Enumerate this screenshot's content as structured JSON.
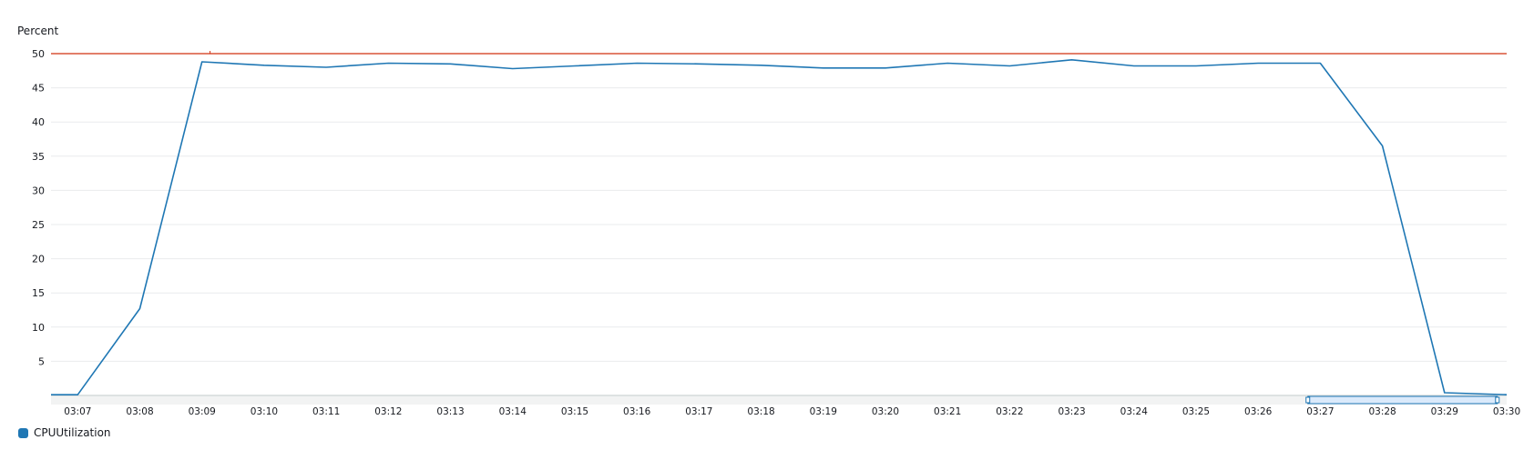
{
  "colors": {
    "series": "#1f77b4",
    "threshold": "#d13212",
    "grid": "#e9ebed",
    "axis": "#d5dbdb",
    "brush_fill": "#dbeafb",
    "brush_stroke": "#1f77b4"
  },
  "chart_data": {
    "type": "line",
    "ylabel": "Percent",
    "ylim": [
      0,
      50
    ],
    "yticks": [
      5,
      10,
      15,
      20,
      25,
      30,
      35,
      40,
      45,
      50
    ],
    "grid": true,
    "legend_position": "bottom-left",
    "x_tick_labels": [
      "03:07",
      "03:08",
      "03:09",
      "03:10",
      "03:11",
      "03:12",
      "03:13",
      "03:14",
      "03:15",
      "03:16",
      "03:17",
      "03:18",
      "03:19",
      "03:20",
      "03:21",
      "03:22",
      "03:23",
      "03:24",
      "03:25",
      "03:26",
      "03:27",
      "03:28",
      "03:29",
      "03:30"
    ],
    "x_range_minutes": [
      6.57,
      30
    ],
    "threshold": {
      "value": 50
    },
    "brush": {
      "from_minute": 26.8,
      "to_minute": 29.85
    },
    "series": [
      {
        "name": "CPUUtilization",
        "x_minutes": [
          6.57,
          7,
          8,
          9,
          10,
          11,
          12,
          13,
          14,
          15,
          16,
          17,
          18,
          19,
          20,
          21,
          22,
          23,
          24,
          25,
          26,
          27,
          28,
          29,
          30
        ],
        "values": [
          0.1,
          0.1,
          12.7,
          48.8,
          48.3,
          48.0,
          48.6,
          48.5,
          47.8,
          48.2,
          48.6,
          48.5,
          48.3,
          47.9,
          47.9,
          48.6,
          48.2,
          49.1,
          48.2,
          48.2,
          48.6,
          48.6,
          36.5,
          0.4,
          0.1
        ]
      }
    ]
  }
}
